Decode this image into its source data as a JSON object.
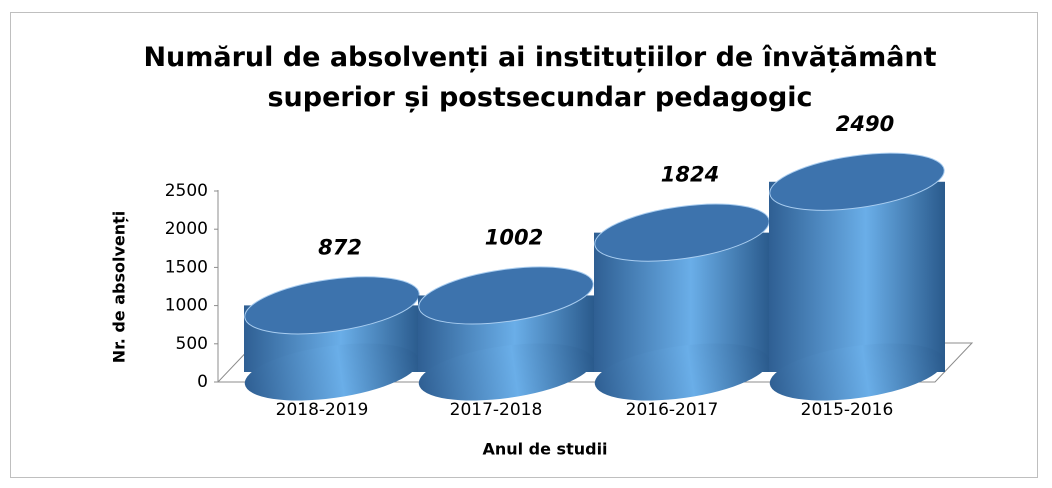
{
  "chart_data": {
    "type": "bar",
    "title": "Numărul de absolvenți ai instituțiilor de învățământ superior și postsecundar pedagogic",
    "x_label": "Anul de studii",
    "y_label": "Nr. de absolvenți",
    "categories": [
      "2018-2019",
      "2017-2018",
      "2016-2017",
      "2015-2016"
    ],
    "values": [
      872,
      1002,
      1824,
      2490
    ],
    "color": "#5b9bd5",
    "ylim": [
      0,
      2500
    ],
    "yticks": [
      0,
      500,
      1000,
      1500,
      2000,
      2500
    ]
  }
}
